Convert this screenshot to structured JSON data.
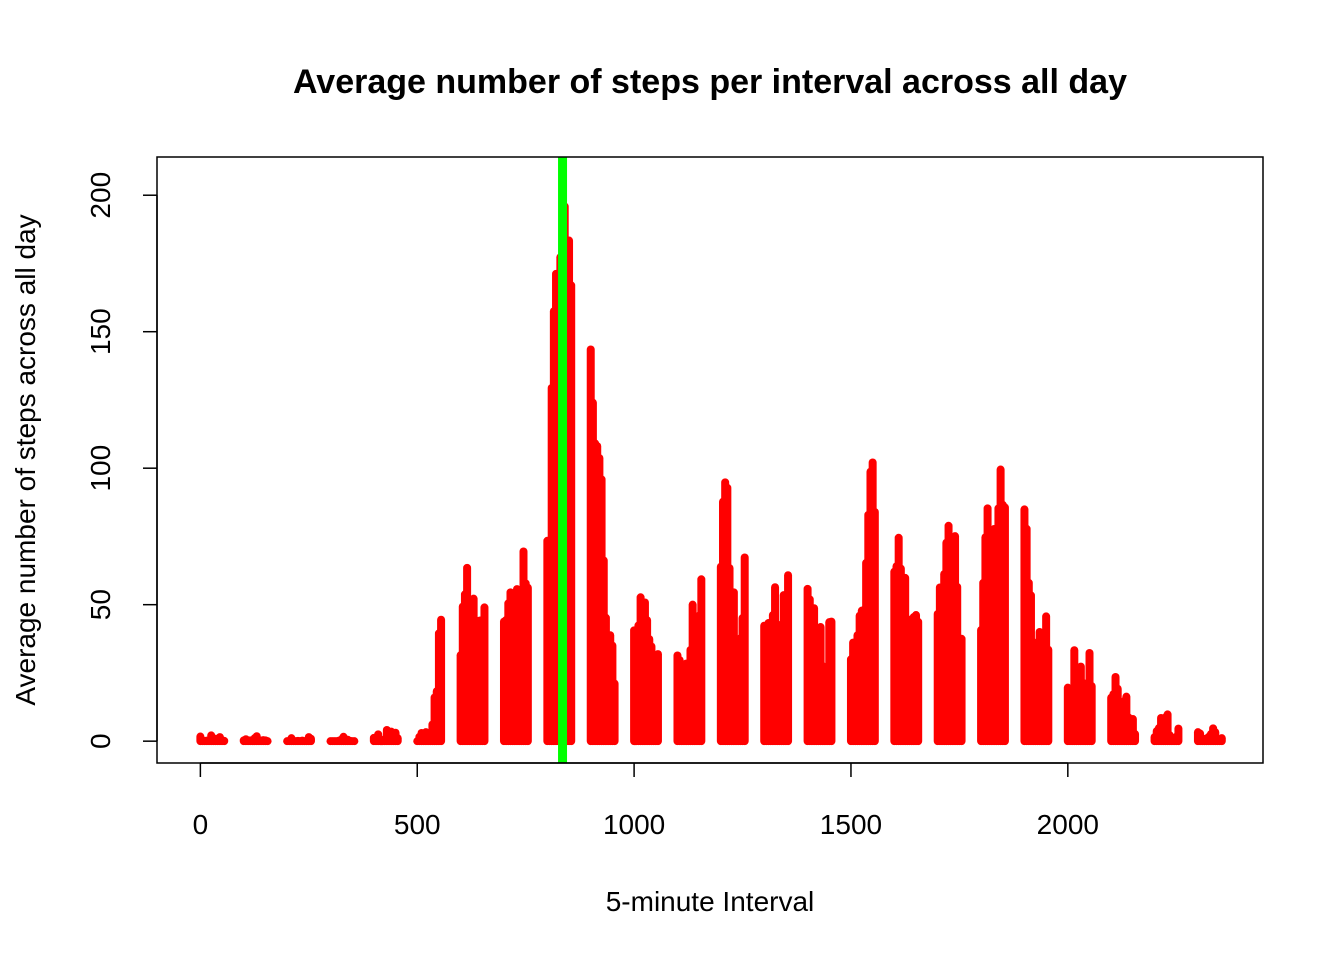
{
  "chart_data": {
    "type": "histogram-line",
    "title": "Average number of steps per interval across all day",
    "xlabel": "5-minute Interval",
    "ylabel": "Average number of steps across all day",
    "xlim": [
      -100,
      2450
    ],
    "ylim": [
      -8,
      214
    ],
    "xticks": [
      0,
      500,
      1000,
      1500,
      2000
    ],
    "yticks": [
      0,
      50,
      100,
      150,
      200
    ],
    "series_color": "#ff0000",
    "marker_line": {
      "x": 835,
      "color": "#00ff00"
    },
    "points": [
      [
        0,
        1.7
      ],
      [
        5,
        0.3
      ],
      [
        10,
        0.1
      ],
      [
        15,
        0.2
      ],
      [
        20,
        0.1
      ],
      [
        25,
        2.1
      ],
      [
        30,
        0.5
      ],
      [
        35,
        0.9
      ],
      [
        40,
        0
      ],
      [
        45,
        1.5
      ],
      [
        50,
        0.4
      ],
      [
        55,
        0.1
      ],
      [
        100,
        0.3
      ],
      [
        105,
        0.7
      ],
      [
        110,
        0.2
      ],
      [
        115,
        0.3
      ],
      [
        120,
        0
      ],
      [
        125,
        1.1
      ],
      [
        130,
        1.8
      ],
      [
        135,
        0.2
      ],
      [
        140,
        0.2
      ],
      [
        145,
        0.4
      ],
      [
        150,
        0.3
      ],
      [
        155,
        0
      ],
      [
        200,
        0
      ],
      [
        205,
        0
      ],
      [
        210,
        1.1
      ],
      [
        215,
        0
      ],
      [
        220,
        0
      ],
      [
        225,
        0.1
      ],
      [
        230,
        0
      ],
      [
        235,
        0.2
      ],
      [
        240,
        0
      ],
      [
        245,
        0
      ],
      [
        250,
        1.5
      ],
      [
        255,
        0.9
      ],
      [
        300,
        0
      ],
      [
        305,
        0
      ],
      [
        310,
        0
      ],
      [
        315,
        0
      ],
      [
        320,
        0.2
      ],
      [
        325,
        0.6
      ],
      [
        330,
        1.6
      ],
      [
        335,
        0.6
      ],
      [
        340,
        0.5
      ],
      [
        345,
        0.1
      ],
      [
        350,
        0
      ],
      [
        355,
        0
      ],
      [
        400,
        1.2
      ],
      [
        405,
        0.9
      ],
      [
        410,
        2.5
      ],
      [
        415,
        0.7
      ],
      [
        420,
        0.3
      ],
      [
        425,
        0.4
      ],
      [
        430,
        4.1
      ],
      [
        435,
        0.7
      ],
      [
        440,
        3.5
      ],
      [
        445,
        0.8
      ],
      [
        450,
        3.1
      ],
      [
        455,
        1.1
      ],
      [
        500,
        0
      ],
      [
        505,
        1.6
      ],
      [
        510,
        3.0
      ],
      [
        515,
        2.2
      ],
      [
        520,
        3.3
      ],
      [
        525,
        3.0
      ],
      [
        530,
        2.1
      ],
      [
        535,
        6.1
      ],
      [
        540,
        16.0
      ],
      [
        545,
        18.3
      ],
      [
        550,
        39.5
      ],
      [
        555,
        44.5
      ],
      [
        600,
        31.5
      ],
      [
        605,
        49.3
      ],
      [
        610,
        53.8
      ],
      [
        615,
        63.5
      ],
      [
        620,
        50.0
      ],
      [
        625,
        47.1
      ],
      [
        630,
        52.2
      ],
      [
        635,
        39.3
      ],
      [
        640,
        44.0
      ],
      [
        645,
        44.2
      ],
      [
        650,
        37.4
      ],
      [
        655,
        49.0
      ],
      [
        700,
        43.8
      ],
      [
        705,
        44.4
      ],
      [
        710,
        50.5
      ],
      [
        715,
        54.5
      ],
      [
        720,
        49.9
      ],
      [
        725,
        51.0
      ],
      [
        730,
        55.7
      ],
      [
        735,
        44.3
      ],
      [
        740,
        52.3
      ],
      [
        745,
        69.5
      ],
      [
        750,
        57.8
      ],
      [
        755,
        56.2
      ],
      [
        800,
        73.4
      ],
      [
        805,
        68.2
      ],
      [
        810,
        129.4
      ],
      [
        815,
        157.5
      ],
      [
        820,
        171.2
      ],
      [
        825,
        155.4
      ],
      [
        830,
        177.3
      ],
      [
        835,
        206.2
      ],
      [
        840,
        195.9
      ],
      [
        845,
        179.6
      ],
      [
        850,
        183.4
      ],
      [
        855,
        167.0
      ],
      [
        900,
        143.5
      ],
      [
        905,
        124.0
      ],
      [
        910,
        109.1
      ],
      [
        915,
        108.1
      ],
      [
        920,
        103.7
      ],
      [
        925,
        95.9
      ],
      [
        930,
        66.2
      ],
      [
        935,
        45.2
      ],
      [
        940,
        24.8
      ],
      [
        945,
        38.8
      ],
      [
        950,
        35.0
      ],
      [
        955,
        21.1
      ],
      [
        1000,
        40.6
      ],
      [
        1005,
        27.0
      ],
      [
        1010,
        42.4
      ],
      [
        1015,
        52.7
      ],
      [
        1020,
        38.9
      ],
      [
        1025,
        50.8
      ],
      [
        1030,
        44.3
      ],
      [
        1035,
        37.4
      ],
      [
        1040,
        34.7
      ],
      [
        1045,
        28.3
      ],
      [
        1050,
        25.1
      ],
      [
        1055,
        31.9
      ],
      [
        1100,
        31.4
      ],
      [
        1105,
        29.7
      ],
      [
        1110,
        21.3
      ],
      [
        1115,
        25.5
      ],
      [
        1120,
        28.4
      ],
      [
        1125,
        26.5
      ],
      [
        1130,
        33.4
      ],
      [
        1135,
        50.0
      ],
      [
        1140,
        42.0
      ],
      [
        1145,
        44.6
      ],
      [
        1150,
        46.0
      ],
      [
        1155,
        59.3
      ],
      [
        1200,
        63.9
      ],
      [
        1205,
        87.7
      ],
      [
        1210,
        94.8
      ],
      [
        1215,
        92.8
      ],
      [
        1220,
        63.4
      ],
      [
        1225,
        50.2
      ],
      [
        1230,
        54.5
      ],
      [
        1235,
        32.4
      ],
      [
        1240,
        26.5
      ],
      [
        1245,
        37.7
      ],
      [
        1250,
        45.1
      ],
      [
        1255,
        67.3
      ],
      [
        1300,
        42.3
      ],
      [
        1305,
        39.9
      ],
      [
        1310,
        43.3
      ],
      [
        1315,
        40.98
      ],
      [
        1320,
        46.2
      ],
      [
        1325,
        56.4
      ],
      [
        1330,
        42.8
      ],
      [
        1335,
        25.1
      ],
      [
        1340,
        39.97
      ],
      [
        1345,
        53.5
      ],
      [
        1350,
        47.3
      ],
      [
        1355,
        60.8
      ],
      [
        1400,
        55.8
      ],
      [
        1405,
        51.96
      ],
      [
        1410,
        43.6
      ],
      [
        1415,
        48.7
      ],
      [
        1420,
        35.5
      ],
      [
        1425,
        37.5
      ],
      [
        1430,
        41.8
      ],
      [
        1435,
        27.5
      ],
      [
        1440,
        17.1
      ],
      [
        1445,
        26.1
      ],
      [
        1450,
        43.6
      ],
      [
        1455,
        43.8
      ],
      [
        1500,
        30.0
      ],
      [
        1505,
        36.1
      ],
      [
        1510,
        35.5
      ],
      [
        1515,
        38.8
      ],
      [
        1520,
        45.96
      ],
      [
        1525,
        47.8
      ],
      [
        1530,
        48.1
      ],
      [
        1535,
        65.3
      ],
      [
        1540,
        82.9
      ],
      [
        1545,
        98.7
      ],
      [
        1550,
        102.1
      ],
      [
        1555,
        83.96
      ],
      [
        1600,
        62.1
      ],
      [
        1605,
        64.1
      ],
      [
        1610,
        74.5
      ],
      [
        1615,
        63.2
      ],
      [
        1620,
        56.9
      ],
      [
        1625,
        59.8
      ],
      [
        1630,
        43.9
      ],
      [
        1635,
        38.6
      ],
      [
        1640,
        44.7
      ],
      [
        1645,
        45.5
      ],
      [
        1650,
        46.2
      ],
      [
        1655,
        43.7
      ],
      [
        1700,
        46.6
      ],
      [
        1705,
        56.3
      ],
      [
        1710,
        50.7
      ],
      [
        1715,
        61.2
      ],
      [
        1720,
        72.7
      ],
      [
        1725,
        78.9
      ],
      [
        1730,
        68.9
      ],
      [
        1735,
        59.7
      ],
      [
        1740,
        75.1
      ],
      [
        1745,
        56.5
      ],
      [
        1750,
        34.8
      ],
      [
        1755,
        37.5
      ],
      [
        1800,
        40.7
      ],
      [
        1805,
        58.0
      ],
      [
        1810,
        74.7
      ],
      [
        1815,
        85.3
      ],
      [
        1820,
        59.3
      ],
      [
        1825,
        67.8
      ],
      [
        1830,
        77.7
      ],
      [
        1835,
        74.2
      ],
      [
        1840,
        85.3
      ],
      [
        1845,
        99.5
      ],
      [
        1850,
        86.6
      ],
      [
        1855,
        85.6
      ],
      [
        1900,
        84.9
      ],
      [
        1905,
        77.8
      ],
      [
        1910,
        58.0
      ],
      [
        1915,
        53.4
      ],
      [
        1920,
        36.3
      ],
      [
        1925,
        20.7
      ],
      [
        1930,
        27.4
      ],
      [
        1935,
        40.0
      ],
      [
        1940,
        30.2
      ],
      [
        1945,
        25.5
      ],
      [
        1950,
        45.7
      ],
      [
        1955,
        33.5
      ],
      [
        2000,
        19.6
      ],
      [
        2005,
        19.0
      ],
      [
        2010,
        19.3
      ],
      [
        2015,
        33.3
      ],
      [
        2020,
        26.8
      ],
      [
        2025,
        21.2
      ],
      [
        2030,
        27.3
      ],
      [
        2035,
        21.3
      ],
      [
        2040,
        19.5
      ],
      [
        2045,
        21.3
      ],
      [
        2050,
        32.3
      ],
      [
        2055,
        20.2
      ],
      [
        2100,
        15.9
      ],
      [
        2105,
        17.2
      ],
      [
        2110,
        23.5
      ],
      [
        2115,
        19.2
      ],
      [
        2120,
        12.5
      ],
      [
        2125,
        8.0
      ],
      [
        2130,
        14.7
      ],
      [
        2135,
        16.3
      ],
      [
        2140,
        8.7
      ],
      [
        2145,
        7.8
      ],
      [
        2150,
        8.1
      ],
      [
        2155,
        2.6
      ],
      [
        2200,
        1.5
      ],
      [
        2205,
        3.7
      ],
      [
        2210,
        4.8
      ],
      [
        2215,
        8.5
      ],
      [
        2220,
        7.1
      ],
      [
        2225,
        8.7
      ],
      [
        2230,
        9.8
      ],
      [
        2235,
        2.2
      ],
      [
        2240,
        0.3
      ],
      [
        2245,
        0.1
      ],
      [
        2250,
        1.6
      ],
      [
        2255,
        4.6
      ],
      [
        2300,
        3.3
      ],
      [
        2305,
        2.8
      ],
      [
        2310,
        0
      ],
      [
        2315,
        0.8
      ],
      [
        2320,
        1.0
      ],
      [
        2325,
        1.6
      ],
      [
        2330,
        2.6
      ],
      [
        2335,
        4.7
      ],
      [
        2340,
        3.3
      ],
      [
        2345,
        0.6
      ],
      [
        2350,
        0.2
      ],
      [
        2355,
        1.1
      ]
    ]
  }
}
